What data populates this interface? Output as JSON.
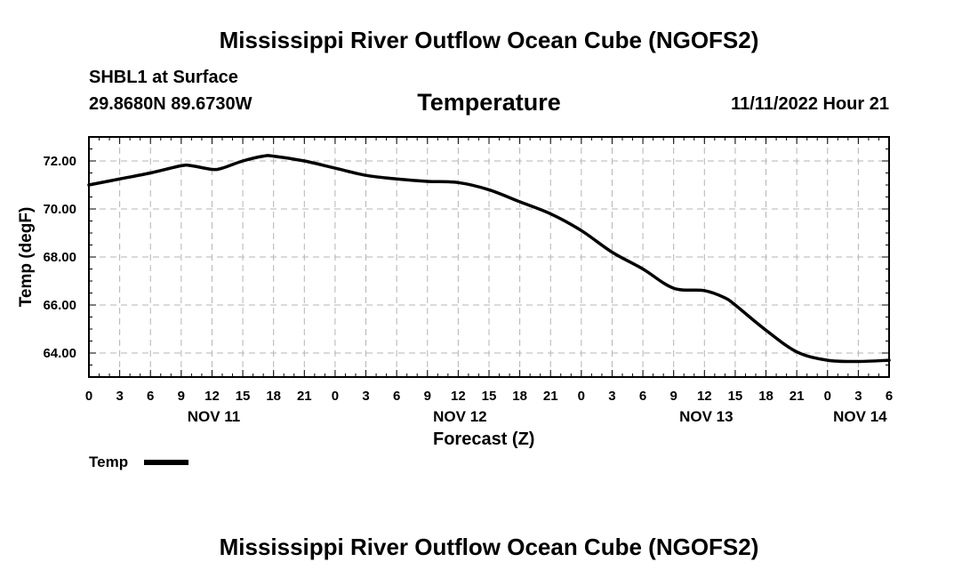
{
  "page": {
    "title_top": "Mississippi River Outflow Ocean Cube (NGOFS2)",
    "title_bottom": "Mississippi River Outflow Ocean Cube (NGOFS2)",
    "station": "SHBL1 at Surface",
    "coords": "29.8680N  89.6730W",
    "variable": "Temperature",
    "timestamp": "11/11/2022 Hour 21"
  },
  "legend": {
    "label": "Temp"
  },
  "chart_data": {
    "type": "line",
    "title": "Temperature",
    "xlabel": "Forecast (Z)",
    "ylabel": "Temp (degF)",
    "xlim": [
      0,
      78
    ],
    "ylim": [
      63,
      73
    ],
    "grid": true,
    "x_ticks": [
      0,
      3,
      6,
      9,
      12,
      15,
      18,
      21,
      24,
      27,
      30,
      33,
      36,
      39,
      42,
      45,
      48,
      51,
      54,
      57,
      60,
      63,
      66,
      69,
      72,
      75,
      78
    ],
    "x_tick_labels": [
      "0",
      "3",
      "6",
      "9",
      "12",
      "15",
      "18",
      "21",
      "0",
      "3",
      "6",
      "9",
      "12",
      "15",
      "18",
      "21",
      "0",
      "3",
      "6",
      "9",
      "12",
      "15",
      "18",
      "21",
      "0",
      "3",
      "6"
    ],
    "y_ticks": [
      64,
      66,
      68,
      70,
      72
    ],
    "y_tick_labels": [
      "64.00",
      "66.00",
      "68.00",
      "70.00",
      "72.00"
    ],
    "date_labels": [
      {
        "x": 12,
        "label": "NOV 11"
      },
      {
        "x": 36,
        "label": "NOV 12"
      },
      {
        "x": 60,
        "label": "NOV 13"
      },
      {
        "x": 75,
        "label": "NOV 14"
      }
    ],
    "series": [
      {
        "name": "Temp",
        "x": [
          0,
          3,
          6,
          9,
          10,
          12,
          13,
          15,
          17,
          18,
          21,
          24,
          27,
          30,
          33,
          36,
          39,
          42,
          45,
          48,
          51,
          54,
          57,
          60,
          62,
          63,
          66,
          69,
          72,
          75,
          78
        ],
        "y": [
          71.0,
          71.25,
          71.5,
          71.8,
          71.8,
          71.65,
          71.7,
          72.0,
          72.2,
          72.2,
          72.0,
          71.7,
          71.4,
          71.25,
          71.15,
          71.1,
          70.8,
          70.3,
          69.8,
          69.1,
          68.2,
          67.5,
          66.7,
          66.6,
          66.3,
          66.0,
          64.95,
          64.05,
          63.7,
          63.65,
          63.7
        ]
      }
    ]
  }
}
